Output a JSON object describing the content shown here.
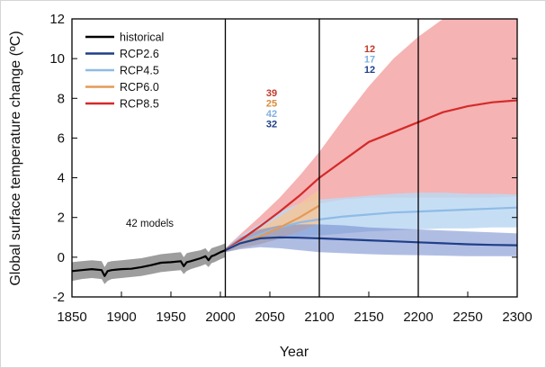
{
  "chart_data": {
    "type": "line",
    "xlabel": "Year",
    "ylabel": "Global surface temperature change (ºC)",
    "xlim": [
      1850,
      2300
    ],
    "ylim": [
      -2,
      12
    ],
    "xticks": [
      1850,
      1900,
      1950,
      2000,
      2050,
      2100,
      2150,
      2200,
      2250,
      2300
    ],
    "yticks": [
      -2,
      0,
      2,
      4,
      6,
      8,
      10,
      12
    ],
    "period_dividers": [
      2005,
      2100,
      2200
    ],
    "legend_position": "top-left",
    "annotation": "42 models",
    "series": [
      {
        "name": "historical",
        "color": "#000000",
        "band_color": "#8c8c8c",
        "x": [
          1850,
          1860,
          1870,
          1880,
          1883,
          1886,
          1890,
          1900,
          1910,
          1920,
          1930,
          1940,
          1950,
          1960,
          1963,
          1966,
          1970,
          1980,
          1985,
          1988,
          1991,
          1994,
          2000,
          2005
        ],
        "mean": [
          -0.7,
          -0.65,
          -0.6,
          -0.65,
          -0.95,
          -0.7,
          -0.65,
          -0.6,
          -0.58,
          -0.5,
          -0.4,
          -0.28,
          -0.25,
          -0.2,
          -0.45,
          -0.25,
          -0.2,
          -0.05,
          0.05,
          -0.15,
          0.05,
          0.1,
          0.25,
          0.35
        ],
        "lower": [
          -1.2,
          -1.1,
          -1.05,
          -1.1,
          -1.35,
          -1.2,
          -1.1,
          -1.05,
          -1.0,
          -0.95,
          -0.85,
          -0.75,
          -0.7,
          -0.65,
          -0.85,
          -0.7,
          -0.6,
          -0.45,
          -0.35,
          -0.5,
          -0.3,
          -0.25,
          -0.1,
          0.0
        ],
        "upper": [
          -0.25,
          -0.2,
          -0.15,
          -0.2,
          -0.5,
          -0.25,
          -0.2,
          -0.15,
          -0.1,
          -0.05,
          0.05,
          0.15,
          0.2,
          0.25,
          0.0,
          0.2,
          0.25,
          0.35,
          0.45,
          0.25,
          0.45,
          0.5,
          0.6,
          0.7
        ]
      },
      {
        "name": "RCP2.6",
        "color": "#1f3f88",
        "band_color": "#6f86cc",
        "x": [
          2005,
          2020,
          2040,
          2060,
          2080,
          2100,
          2125,
          2150,
          2175,
          2200,
          2225,
          2250,
          2275,
          2300
        ],
        "mean": [
          0.35,
          0.7,
          0.95,
          1.0,
          0.98,
          0.95,
          0.9,
          0.85,
          0.8,
          0.75,
          0.7,
          0.65,
          0.62,
          0.6
        ],
        "lower": [
          0.25,
          0.4,
          0.5,
          0.45,
          0.35,
          0.25,
          0.2,
          0.15,
          0.12,
          0.1,
          0.08,
          0.05,
          0.05,
          0.05
        ],
        "upper": [
          0.45,
          1.0,
          1.4,
          1.6,
          1.65,
          1.65,
          1.6,
          1.5,
          1.45,
          1.4,
          1.35,
          1.3,
          1.25,
          1.2
        ]
      },
      {
        "name": "RCP4.5",
        "color": "#8fbbe6",
        "band_color": "#bcd8f2",
        "x": [
          2005,
          2020,
          2040,
          2060,
          2080,
          2100,
          2125,
          2150,
          2175,
          2200,
          2225,
          2250,
          2275,
          2300
        ],
        "mean": [
          0.35,
          0.75,
          1.15,
          1.5,
          1.75,
          1.9,
          2.05,
          2.15,
          2.25,
          2.3,
          2.35,
          2.4,
          2.45,
          2.5
        ],
        "lower": [
          0.25,
          0.5,
          0.7,
          0.9,
          1.05,
          1.1,
          1.2,
          1.3,
          1.35,
          1.4,
          1.45,
          1.45,
          1.5,
          1.5
        ],
        "upper": [
          0.45,
          1.05,
          1.7,
          2.3,
          2.7,
          2.9,
          3.0,
          3.1,
          3.2,
          3.25,
          3.25,
          3.2,
          3.2,
          3.15
        ]
      },
      {
        "name": "RCP6.0",
        "color": "#e49a55",
        "band_color": "#f2c69b",
        "x": [
          2005,
          2020,
          2040,
          2060,
          2080,
          2100
        ],
        "mean": [
          0.35,
          0.7,
          1.05,
          1.5,
          2.0,
          2.6
        ],
        "lower": [
          0.25,
          0.45,
          0.65,
          0.95,
          1.3,
          1.7
        ],
        "upper": [
          0.45,
          0.95,
          1.45,
          2.05,
          2.7,
          3.4
        ]
      },
      {
        "name": "RCP8.5",
        "color": "#d42a2a",
        "band_color": "#f3a6a6",
        "x": [
          2005,
          2020,
          2040,
          2060,
          2080,
          2100,
          2125,
          2150,
          2175,
          2200,
          2225,
          2250,
          2275,
          2300
        ],
        "mean": [
          0.35,
          0.85,
          1.55,
          2.3,
          3.1,
          4.0,
          4.9,
          5.8,
          6.3,
          6.8,
          7.3,
          7.6,
          7.8,
          7.9
        ],
        "lower": [
          0.25,
          0.6,
          1.05,
          1.6,
          2.1,
          2.7,
          2.9,
          3.0,
          3.0,
          3.0,
          3.0,
          3.0,
          3.0,
          3.05
        ],
        "upper": [
          0.45,
          1.15,
          2.05,
          3.0,
          4.1,
          5.3,
          7.0,
          8.6,
          10.0,
          11.1,
          12.0,
          12.4,
          12.6,
          12.8
        ]
      }
    ],
    "model_counts": [
      {
        "period": "2006-2100",
        "values": [
          {
            "series": "RCP8.5",
            "label": "39",
            "color": "#c0392b"
          },
          {
            "series": "RCP6.0",
            "label": "25",
            "color": "#d98b3a"
          },
          {
            "series": "RCP4.5",
            "label": "42",
            "color": "#7fb0e0"
          },
          {
            "series": "RCP2.6",
            "label": "32",
            "color": "#1f3f88"
          }
        ]
      },
      {
        "period": "2101-2200",
        "values": [
          {
            "series": "RCP8.5",
            "label": "12",
            "color": "#c0392b"
          },
          {
            "series": "RCP4.5",
            "label": "17",
            "color": "#7fb0e0"
          },
          {
            "series": "RCP2.6",
            "label": "12",
            "color": "#1f3f88"
          }
        ]
      }
    ]
  }
}
